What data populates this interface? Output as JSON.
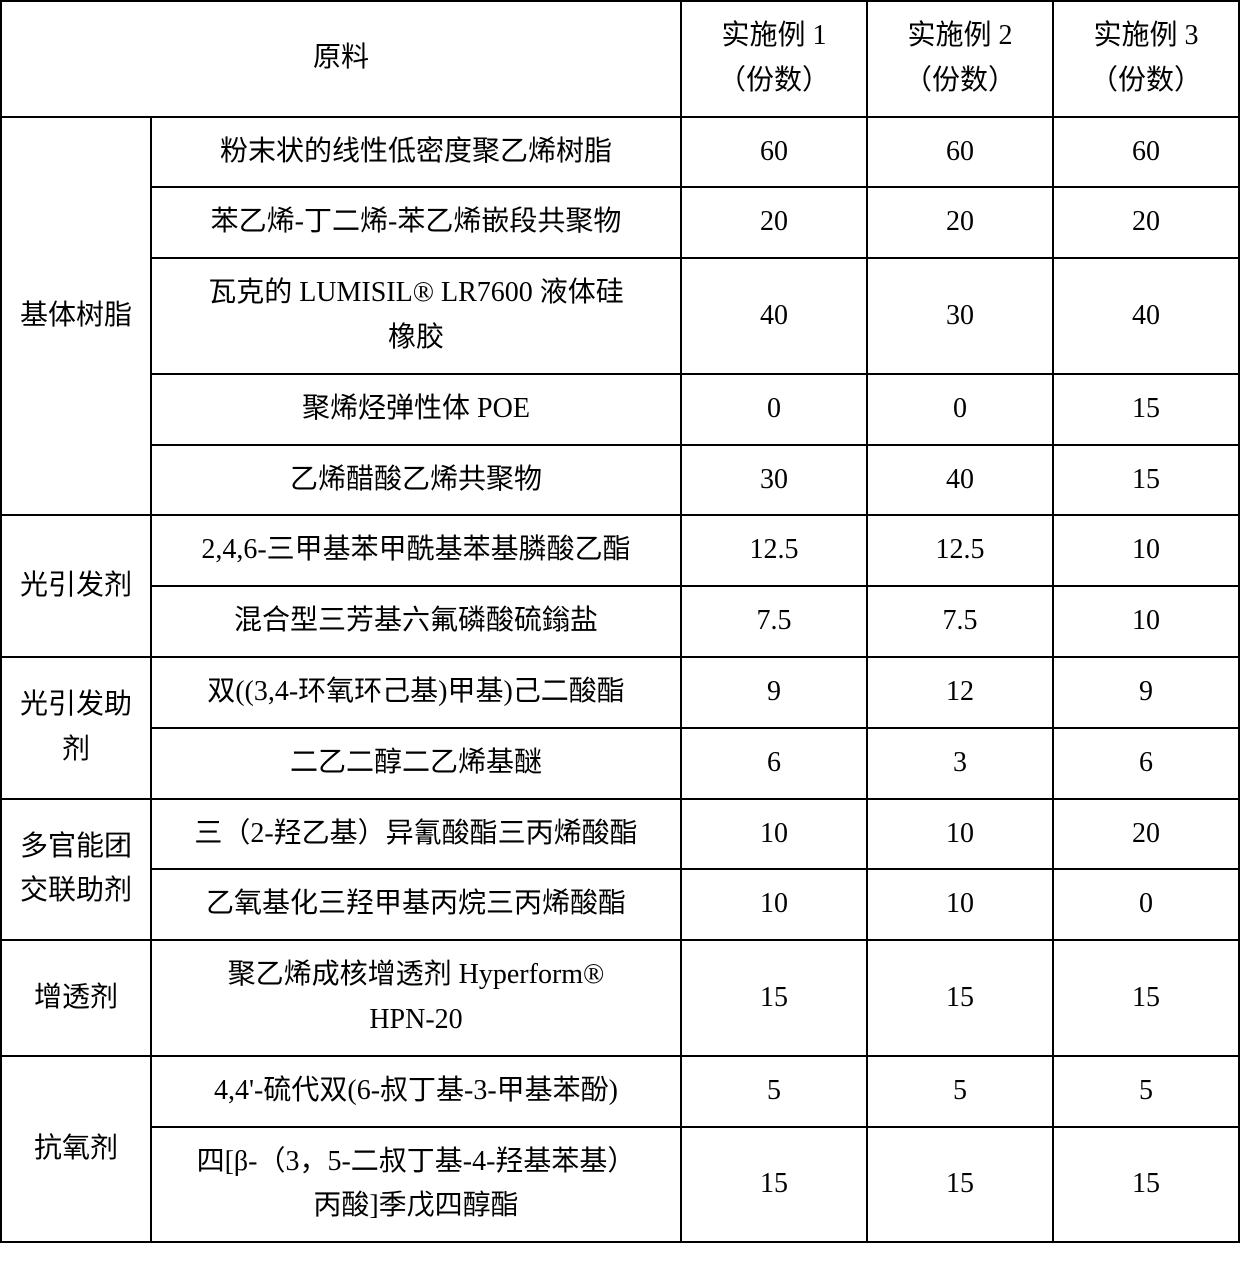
{
  "header": {
    "material": "原料",
    "ex1_l1": "实施例 1",
    "ex1_l2": "（份数）",
    "ex2_l1": "实施例 2",
    "ex2_l2": "（份数）",
    "ex3_l1": "实施例 3",
    "ex3_l2": "（份数）"
  },
  "g1": {
    "cat": "基体树脂",
    "r1": {
      "name": "粉末状的线性低密度聚乙烯树脂",
      "v1": "60",
      "v2": "60",
      "v3": "60"
    },
    "r2": {
      "name": "苯乙烯-丁二烯-苯乙烯嵌段共聚物",
      "v1": "20",
      "v2": "20",
      "v3": "20"
    },
    "r3": {
      "name_l1": "瓦克的 LUMISIL® LR7600 液体硅",
      "name_l2": "橡胶",
      "v1": "40",
      "v2": "30",
      "v3": "40"
    },
    "r4": {
      "name": "聚烯烃弹性体 POE",
      "v1": "0",
      "v2": "0",
      "v3": "15"
    },
    "r5": {
      "name": "乙烯醋酸乙烯共聚物",
      "v1": "30",
      "v2": "40",
      "v3": "15"
    }
  },
  "g2": {
    "cat": "光引发剂",
    "r1": {
      "name": "2,4,6-三甲基苯甲酰基苯基膦酸乙酯",
      "v1": "12.5",
      "v2": "12.5",
      "v3": "10"
    },
    "r2": {
      "name": "混合型三芳基六氟磷酸硫鎓盐",
      "v1": "7.5",
      "v2": "7.5",
      "v3": "10"
    }
  },
  "g3": {
    "cat_l1": "光引发助",
    "cat_l2": "剂",
    "r1": {
      "name": "双((3,4-环氧环己基)甲基)己二酸酯",
      "v1": "9",
      "v2": "12",
      "v3": "9"
    },
    "r2": {
      "name": "二乙二醇二乙烯基醚",
      "v1": "6",
      "v2": "3",
      "v3": "6"
    }
  },
  "g4": {
    "cat_l1": "多官能团",
    "cat_l2": "交联助剂",
    "r1": {
      "name": "三（2-羟乙基）异氰酸酯三丙烯酸酯",
      "v1": "10",
      "v2": "10",
      "v3": "20"
    },
    "r2": {
      "name": "乙氧基化三羟甲基丙烷三丙烯酸酯",
      "v1": "10",
      "v2": "10",
      "v3": "0"
    }
  },
  "g5": {
    "cat": "增透剂",
    "r1": {
      "name_l1": "聚乙烯成核增透剂 Hyperform®",
      "name_l2": "HPN-20",
      "v1": "15",
      "v2": "15",
      "v3": "15"
    }
  },
  "g6": {
    "cat": "抗氧剂",
    "r1": {
      "name": "4,4'-硫代双(6-叔丁基-3-甲基苯酚)",
      "v1": "5",
      "v2": "5",
      "v3": "5"
    },
    "r2": {
      "name_l1": "四[β-（3，5-二叔丁基-4-羟基苯基）",
      "name_l2": "丙酸]季戊四醇酯",
      "v1": "15",
      "v2": "15",
      "v3": "15"
    }
  }
}
